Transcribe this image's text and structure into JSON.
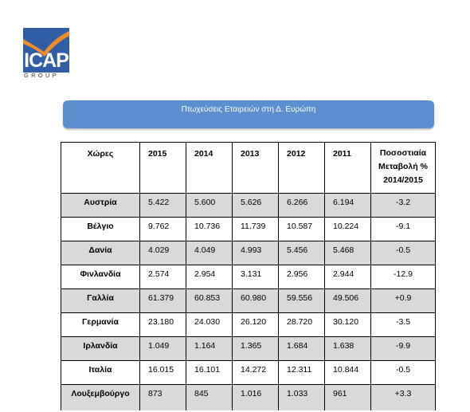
{
  "logo": {
    "text": "ICAP",
    "sub": "GROUP"
  },
  "banner": {
    "title": "Πτωχεύσεις Εταιρειών στη Δ. Ευρώπη"
  },
  "table": {
    "headers": [
      "Χώρες",
      "2015",
      "2014",
      "2013",
      "2012",
      "2011",
      "Ποσοστιαία Μεταβολή % 2014/2015"
    ],
    "rows": [
      {
        "country": "Αυστρία",
        "v2015": "5.422",
        "v2014": "5.600",
        "v2013": "5.626",
        "v2012": "6.266",
        "v2011": "6.194",
        "pct": "-3.2"
      },
      {
        "country": "Βέλγιο",
        "v2015": "9.762",
        "v2014": "10.736",
        "v2013": "11.739",
        "v2012": "10.587",
        "v2011": "10.224",
        "pct": "-9.1"
      },
      {
        "country": "Δανία",
        "v2015": "4.029",
        "v2014": "4.049",
        "v2013": "4.993",
        "v2012": "5.456",
        "v2011": "5.468",
        "pct": "-0.5"
      },
      {
        "country": "Φινλανδία",
        "v2015": "2.574",
        "v2014": "2.954",
        "v2013": "3.131",
        "v2012": "2.956",
        "v2011": "2.944",
        "pct": "-12.9"
      },
      {
        "country": "Γαλλία",
        "v2015": "61.379",
        "v2014": "60.853",
        "v2013": "60.980",
        "v2012": "59.556",
        "v2011": "49.506",
        "pct": "+0.9"
      },
      {
        "country": "Γερμανία",
        "v2015": "23.180",
        "v2014": "24.030",
        "v2013": "26.120",
        "v2012": "28.720",
        "v2011": "30.120",
        "pct": "-3.5"
      },
      {
        "country": "Ιρλανδία",
        "v2015": "1.049",
        "v2014": "1.164",
        "v2013": "1.365",
        "v2012": "1.684",
        "v2011": "1.638",
        "pct": "-9.9"
      },
      {
        "country": "Ιταλία",
        "v2015": "16.015",
        "v2014": "16.101",
        "v2013": "14.272",
        "v2012": "12.311",
        "v2011": "10.844",
        "pct": "-0.5"
      },
      {
        "country": "Λουξεμβούργο",
        "v2015": "873",
        "v2014": "845",
        "v2013": "1.016",
        "v2012": "1.033",
        "v2011": "961",
        "pct": "+3.3"
      }
    ]
  },
  "colors": {
    "shade": "#d9d9d9",
    "banner": "#5b8fcf",
    "logo_blue": "#2f5da6",
    "logo_orange": "#f28c28"
  }
}
